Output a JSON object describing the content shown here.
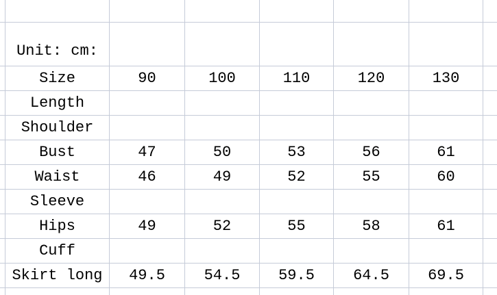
{
  "colors": {
    "gridline": "#c5cbd8",
    "text": "#000000",
    "background": "#ffffff"
  },
  "sheet": {
    "unit_row": {
      "label": "Unit: cm:"
    },
    "rows": [
      {
        "label": "Size",
        "values": [
          "90",
          "100",
          "110",
          "120",
          "130"
        ]
      },
      {
        "label": "Length",
        "values": [
          "",
          "",
          "",
          "",
          ""
        ]
      },
      {
        "label": "Shoulder",
        "values": [
          "",
          "",
          "",
          "",
          ""
        ]
      },
      {
        "label": "Bust",
        "values": [
          "47",
          "50",
          "53",
          "56",
          "61"
        ]
      },
      {
        "label": "Waist",
        "values": [
          "46",
          "49",
          "52",
          "55",
          "60"
        ]
      },
      {
        "label": "Sleeve",
        "values": [
          "",
          "",
          "",
          "",
          ""
        ]
      },
      {
        "label": "Hips",
        "values": [
          "49",
          "52",
          "55",
          "58",
          "61"
        ]
      },
      {
        "label": "Cuff",
        "values": [
          "",
          "",
          "",
          "",
          ""
        ]
      },
      {
        "label": "Skirt long",
        "values": [
          "49.5",
          "54.5",
          "59.5",
          "64.5",
          "69.5"
        ]
      }
    ]
  }
}
